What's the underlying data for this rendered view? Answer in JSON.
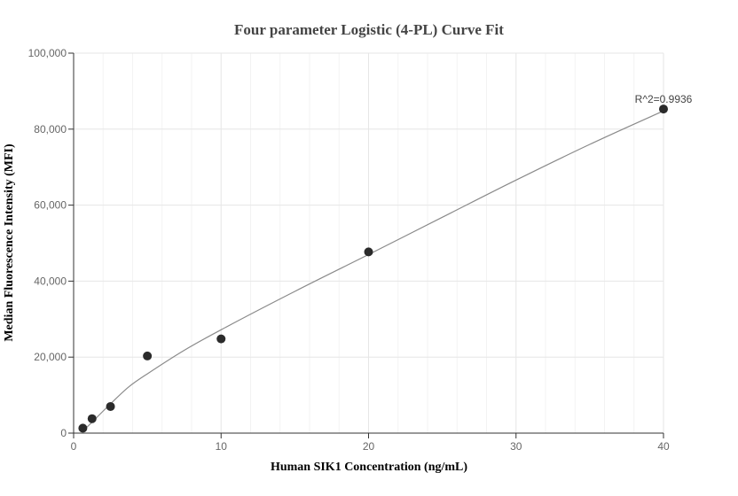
{
  "chart_data": {
    "type": "scatter",
    "title": "Four parameter Logistic (4-PL) Curve Fit",
    "xlabel": "Human SIK1 Concentration (ng/mL)",
    "ylabel": "Median Fluorescence Intensity (MFI)",
    "xlim": [
      0,
      40
    ],
    "ylim": [
      0,
      100000
    ],
    "x_ticks": [
      0,
      10,
      20,
      30,
      40
    ],
    "x_tick_labels": [
      "0",
      "10",
      "20",
      "30",
      "40"
    ],
    "y_ticks": [
      0,
      20000,
      40000,
      60000,
      80000,
      100000
    ],
    "y_tick_labels": [
      "0",
      "20,000",
      "40,000",
      "60,000",
      "80,000",
      "100,000"
    ],
    "grid": true,
    "series": [
      {
        "type": "scatter",
        "x": [
          0.625,
          1.25,
          2.5,
          5,
          10,
          20,
          40
        ],
        "y": [
          1300,
          3800,
          7000,
          20300,
          24800,
          47700,
          85300
        ],
        "color": "#2b2b2b"
      },
      {
        "type": "line",
        "x": [
          0.625,
          1.25,
          2.5,
          3.75,
          5,
          7.5,
          10,
          15,
          20,
          25,
          30,
          35,
          40
        ],
        "y": [
          500,
          2900,
          7700,
          12200,
          15600,
          21800,
          27200,
          37300,
          47000,
          56800,
          66600,
          76000,
          84800
        ],
        "color": "#8a8a8a"
      }
    ],
    "annotations": [
      {
        "text": "R^2=0.9936",
        "x": 40,
        "y": 85300
      }
    ]
  }
}
